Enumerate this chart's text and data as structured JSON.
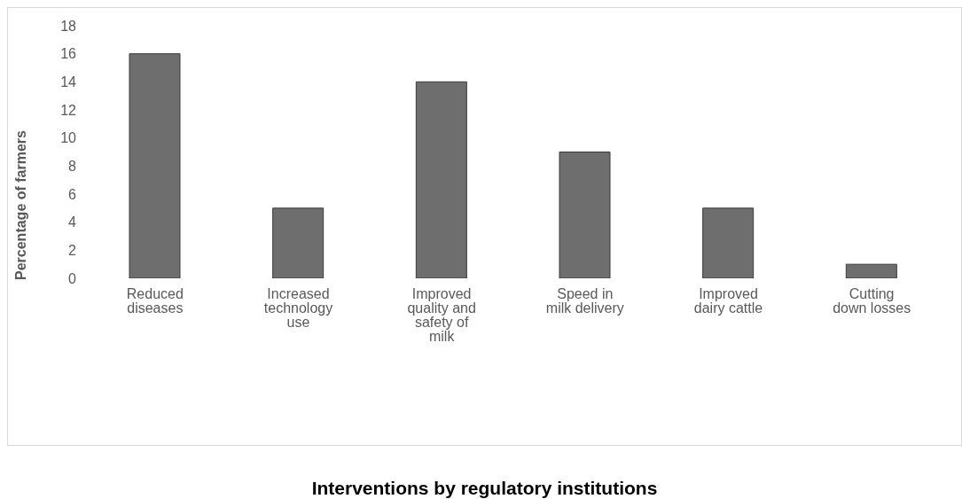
{
  "chart_data": {
    "type": "bar",
    "annotations": [
      "Interventions by regulatory institutions"
    ],
    "ylabel": "Percentage of farmers",
    "categories": [
      "Reduced diseases",
      "Increased technology use",
      "Improved quality and safety of milk",
      "Speed in milk delivery",
      "Improved dairy cattle",
      "Cutting down losses"
    ],
    "values": [
      16,
      5,
      14,
      9,
      5,
      1
    ],
    "color": "#6e6e6e",
    "ylim": [
      0,
      18
    ],
    "yticks": [
      0,
      2,
      4,
      6,
      8,
      10,
      12,
      14,
      16,
      18
    ],
    "grid": false,
    "legend": false
  }
}
